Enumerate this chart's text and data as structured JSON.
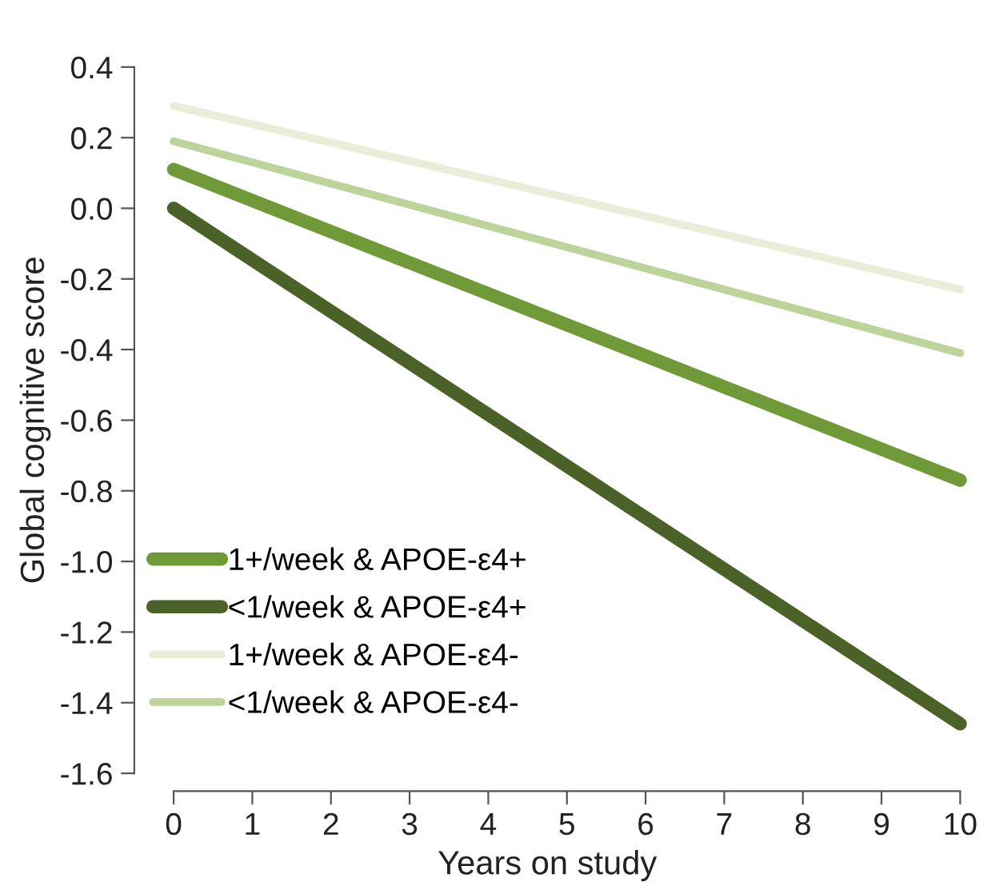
{
  "chart_data": {
    "type": "line",
    "xlabel": "Years on study",
    "ylabel": "Global cognitive score",
    "x": [
      0,
      10
    ],
    "series": [
      {
        "name": "1+/week & APOE-ε4+",
        "color": "#709a38",
        "values": [
          0.11,
          -0.77
        ]
      },
      {
        "name": "<1/week & APOE-ε4+",
        "color": "#4a6228",
        "values": [
          0.0,
          -1.46
        ]
      },
      {
        "name": "1+/week & APOE-ε4-",
        "color": "#e8eed8",
        "values": [
          0.29,
          -0.23
        ]
      },
      {
        "name": "<1/week & APOE-ε4-",
        "color": "#bcd49a",
        "values": [
          0.19,
          -0.41
        ]
      }
    ],
    "xlim": [
      -0.5,
      10
    ],
    "xticks": [
      0,
      1,
      2,
      3,
      4,
      5,
      6,
      7,
      8,
      9,
      10
    ],
    "ylim": [
      -1.6,
      0.4
    ],
    "yticks": [
      0.4,
      0.2,
      {
        "value": 0,
        "label": "0.0"
      },
      {
        "value": -0.2,
        "label": "-0.2"
      },
      {
        "value": -0.4,
        "label": "-0.4"
      },
      {
        "value": -0.6,
        "label": "-0.6"
      },
      {
        "value": -0.8,
        "label": "-0.8"
      },
      {
        "value": -1.0,
        "label": "-1.0"
      },
      {
        "value": -1.2,
        "label": "-1.2"
      },
      {
        "value": -1.4,
        "label": "-1.4"
      },
      {
        "value": -1.6,
        "label": "-1.6"
      }
    ],
    "grid": false,
    "legend": "bottom left",
    "marker": "none",
    "line_style": "solid"
  }
}
